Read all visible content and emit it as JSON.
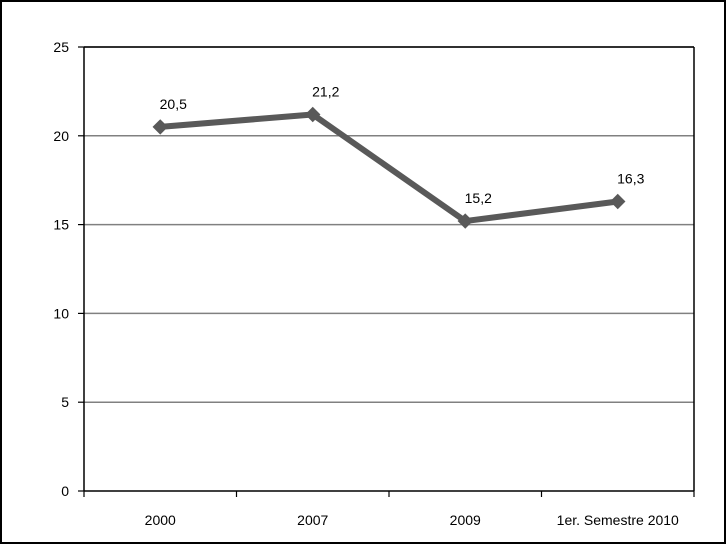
{
  "chart_data": {
    "type": "line",
    "categories": [
      "2000",
      "2007",
      "2009",
      "1er. Semestre 2010"
    ],
    "series": [
      {
        "values": [
          20.5,
          21.2,
          15.2,
          16.3
        ],
        "value_labels": [
          "20,5",
          "21,2",
          "15,2",
          "16,3"
        ]
      }
    ],
    "title": "",
    "xlabel": "",
    "ylabel": "",
    "ylim": [
      0,
      25
    ],
    "yticks": [
      0,
      5,
      10,
      15,
      20,
      25
    ],
    "ytick_labels": [
      "0",
      "5",
      "10",
      "15",
      "20",
      "25"
    ],
    "grid": true,
    "colors": {
      "line": "#595959",
      "marker": "#595959",
      "grid": "#808080",
      "axis": "#000000",
      "border": "#000000"
    }
  }
}
